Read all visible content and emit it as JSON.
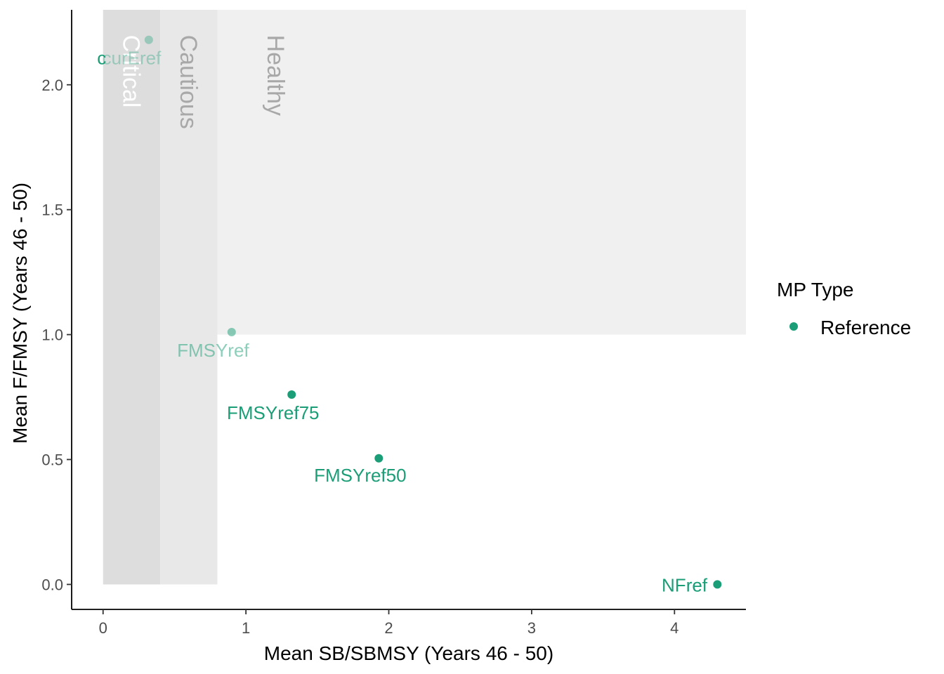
{
  "chart_data": {
    "type": "scatter",
    "xlabel": "Mean SB/SBMSY (Years 46 - 50)",
    "ylabel": "Mean F/FMSY (Years 46 - 50)",
    "xlim": [
      -0.22,
      4.5
    ],
    "ylim": [
      -0.1,
      2.3
    ],
    "x_ticks": [
      0,
      1,
      2,
      3,
      4
    ],
    "x_tick_labels": [
      "0",
      "1",
      "2",
      "3",
      "4"
    ],
    "y_ticks": [
      0.0,
      0.5,
      1.0,
      1.5,
      2.0
    ],
    "y_tick_labels": [
      "0.0",
      "0.5",
      "1.0",
      "1.5",
      "2.0"
    ],
    "grid": false,
    "zones": [
      {
        "name": "Critical",
        "x0": 0,
        "x1": 0.4,
        "y0": 0,
        "y1": 2.3,
        "fill": "#dddddd",
        "text_color": "#ffffff",
        "label_y": 2.2
      },
      {
        "name": "Cautious",
        "x0": 0.4,
        "x1": 0.8,
        "y0": 0,
        "y1": 2.3,
        "fill": "#e8e8e8",
        "text_color": "#a8a8a8",
        "label_y": 2.2
      },
      {
        "name": "Healthy",
        "x0": 0.8,
        "x1": 4.5,
        "y0": 1.0,
        "y1": 2.3,
        "fill": "#f0f0f0",
        "text_color": "#a8a8a8",
        "label_y": 2.2
      }
    ],
    "series": [
      {
        "name": "Reference",
        "color": "#1b9e77",
        "points": [
          {
            "label": "curEref",
            "x": 0.32,
            "y": 2.18,
            "label_x": 0.2,
            "label_y": 2.11,
            "opacity": 0.35
          },
          {
            "label": "FMSYref",
            "x": 0.9,
            "y": 1.01,
            "label_x": 0.77,
            "label_y": 0.94,
            "opacity": 0.5
          },
          {
            "label": "FMSYref75",
            "x": 1.32,
            "y": 0.76,
            "label_x": 1.19,
            "label_y": 0.69,
            "opacity": 1
          },
          {
            "label": "FMSYref50",
            "x": 1.93,
            "y": 0.505,
            "label_x": 1.8,
            "label_y": 0.44,
            "opacity": 1
          },
          {
            "label": "NFref",
            "x": 4.3,
            "y": 0.0,
            "label_x": 4.07,
            "label_y": 0.0,
            "opacity": 1
          }
        ]
      }
    ],
    "edge_label": {
      "text": "c",
      "x": -0.01,
      "y": 2.11
    },
    "legend": {
      "title": "MP Type",
      "position": "right",
      "entries": [
        "Reference"
      ]
    }
  }
}
